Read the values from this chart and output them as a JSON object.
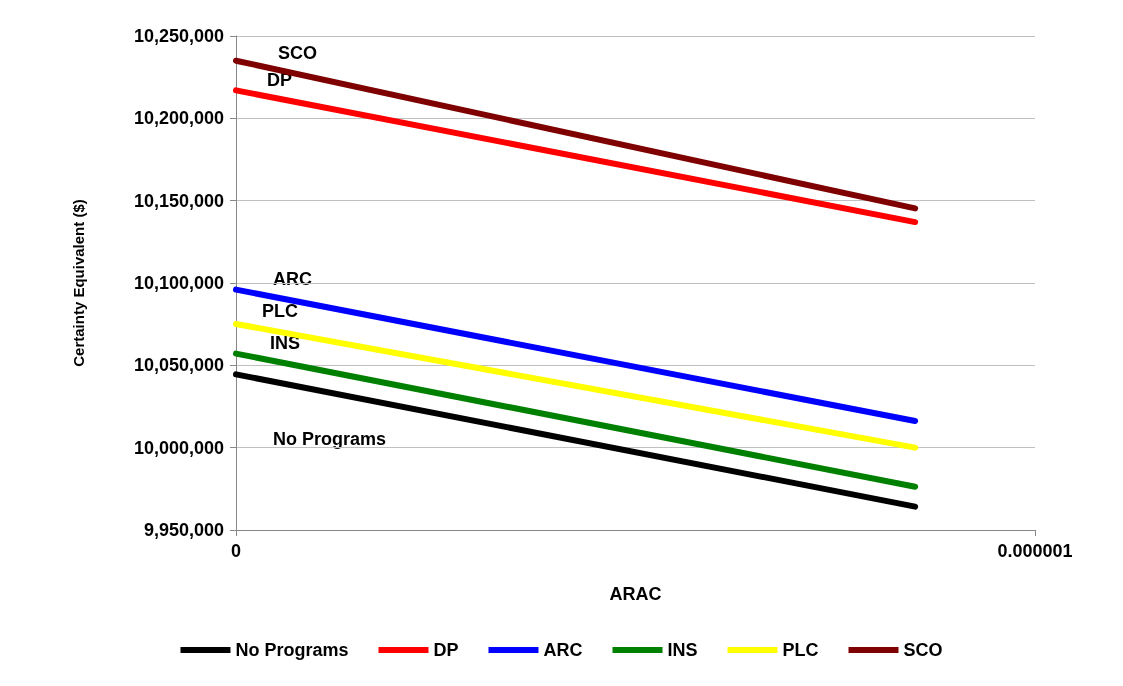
{
  "chart_data": {
    "type": "line",
    "xlabel": "ARAC",
    "ylabel": "Certainty Equivalent ($)",
    "x": [
      0,
      8.5e-07
    ],
    "xlim": [
      0,
      1e-06
    ],
    "xticks": [
      0,
      {
        "value": 1e-06,
        "label": "0.000001"
      }
    ],
    "ylim": [
      9950000,
      10250000
    ],
    "yticks": [
      {
        "value": 9950000,
        "label": "9,950,000"
      },
      {
        "value": 10000000,
        "label": "10,000,000"
      },
      {
        "value": 10050000,
        "label": "10,050,000"
      },
      {
        "value": 10100000,
        "label": "10,100,000"
      },
      {
        "value": 10150000,
        "label": "10,150,000"
      },
      {
        "value": 10200000,
        "label": "10,200,000"
      },
      {
        "value": 10250000,
        "label": "10,250,000"
      }
    ],
    "series": [
      {
        "name": "No Programs",
        "color": "#000000",
        "values": [
          10044500,
          9964200
        ]
      },
      {
        "name": "DP",
        "color": "#ff0000",
        "values": [
          10217000,
          10137000
        ]
      },
      {
        "name": "ARC",
        "color": "#0000ff",
        "values": [
          10096000,
          10016200
        ]
      },
      {
        "name": "INS",
        "color": "#008000",
        "values": [
          10057100,
          9976300
        ]
      },
      {
        "name": "PLC",
        "color": "#ffff00",
        "values": [
          10075100,
          10000000
        ]
      },
      {
        "name": "SCO",
        "color": "#7f0000",
        "values": [
          10235000,
          10145300
        ]
      }
    ],
    "annotations": [
      "SCO",
      "DP",
      "ARC",
      "PLC",
      "INS",
      "No Programs"
    ],
    "grid": "y",
    "legend": "bottom",
    "marker": "none",
    "line_style": "solid"
  }
}
